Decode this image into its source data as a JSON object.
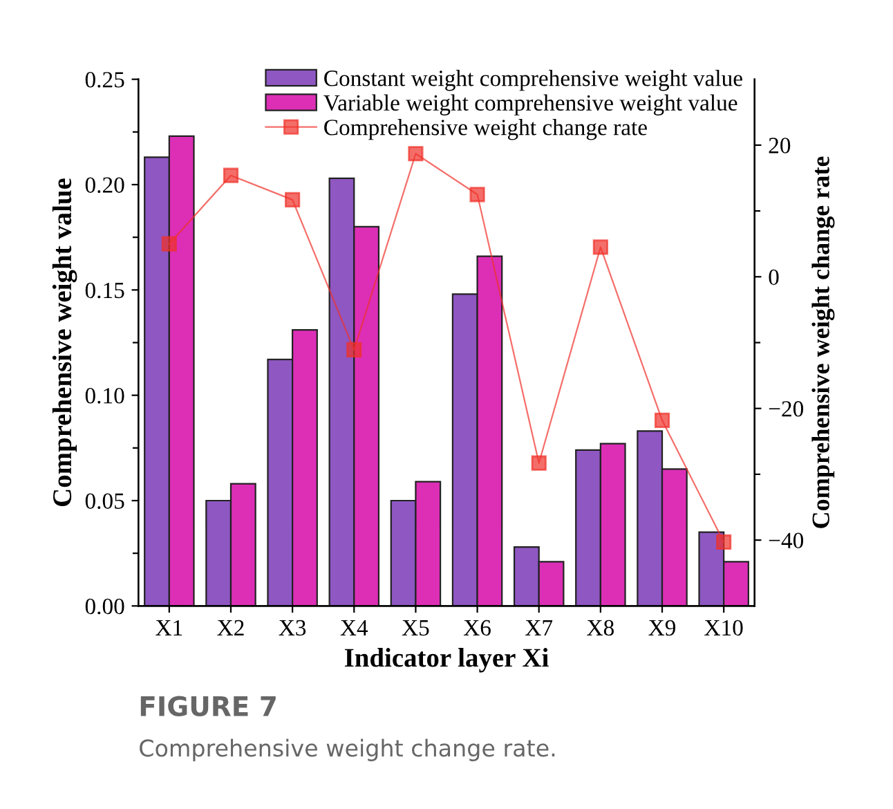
{
  "chart_data": {
    "type": "bar",
    "xlabel": "Indicator layer Xi",
    "ylabel": "Comprehensive weight value",
    "y2label": "Comprehensive weight change rate",
    "categories": [
      "X1",
      "X2",
      "X3",
      "X4",
      "X5",
      "X6",
      "X7",
      "X8",
      "X9",
      "X10"
    ],
    "series": [
      {
        "name": "Constant weight comprehensive weight value",
        "color": "#8e57c2",
        "values": [
          0.213,
          0.05,
          0.117,
          0.203,
          0.05,
          0.148,
          0.028,
          0.074,
          0.083,
          0.035
        ]
      },
      {
        "name": "Variable weight comprehensive weight value",
        "color": "#dc2fb6",
        "values": [
          0.223,
          0.058,
          0.131,
          0.18,
          0.059,
          0.166,
          0.021,
          0.077,
          0.065,
          0.021
        ]
      },
      {
        "name": "Comprehensive weight change rate",
        "type": "line",
        "axis": "y2",
        "color": "#f0302a",
        "marker": "square",
        "values": [
          5,
          15.4,
          11.7,
          -11.1,
          18.7,
          12.5,
          -28.3,
          4.5,
          -21.8,
          -40.3
        ]
      }
    ],
    "ylim": [
      0,
      0.25
    ],
    "yticks": [
      {
        "value": 0,
        "label": "0.00"
      },
      {
        "value": 0.025,
        "label": null
      },
      {
        "value": 0.05,
        "label": "0.05"
      },
      {
        "value": 0.075,
        "label": null
      },
      {
        "value": 0.1,
        "label": "0.10"
      },
      {
        "value": 0.125,
        "label": null
      },
      {
        "value": 0.15,
        "label": "0.15"
      },
      {
        "value": 0.175,
        "label": null
      },
      {
        "value": 0.2,
        "label": "0.20"
      },
      {
        "value": 0.225,
        "label": null
      },
      {
        "value": 0.25,
        "label": "0.25"
      }
    ],
    "y2lim": [
      -50,
      30
    ],
    "y2ticks": [
      {
        "value": -40,
        "label": "−40"
      },
      {
        "value": -30,
        "label": null
      },
      {
        "value": -20,
        "label": "−20"
      },
      {
        "value": -10,
        "label": null
      },
      0,
      {
        "value": 10,
        "label": null
      },
      20
    ],
    "legend": "top right",
    "grid": false,
    "annotations": [
      "FIGURE 7",
      "Comprehensive weight change rate."
    ]
  }
}
